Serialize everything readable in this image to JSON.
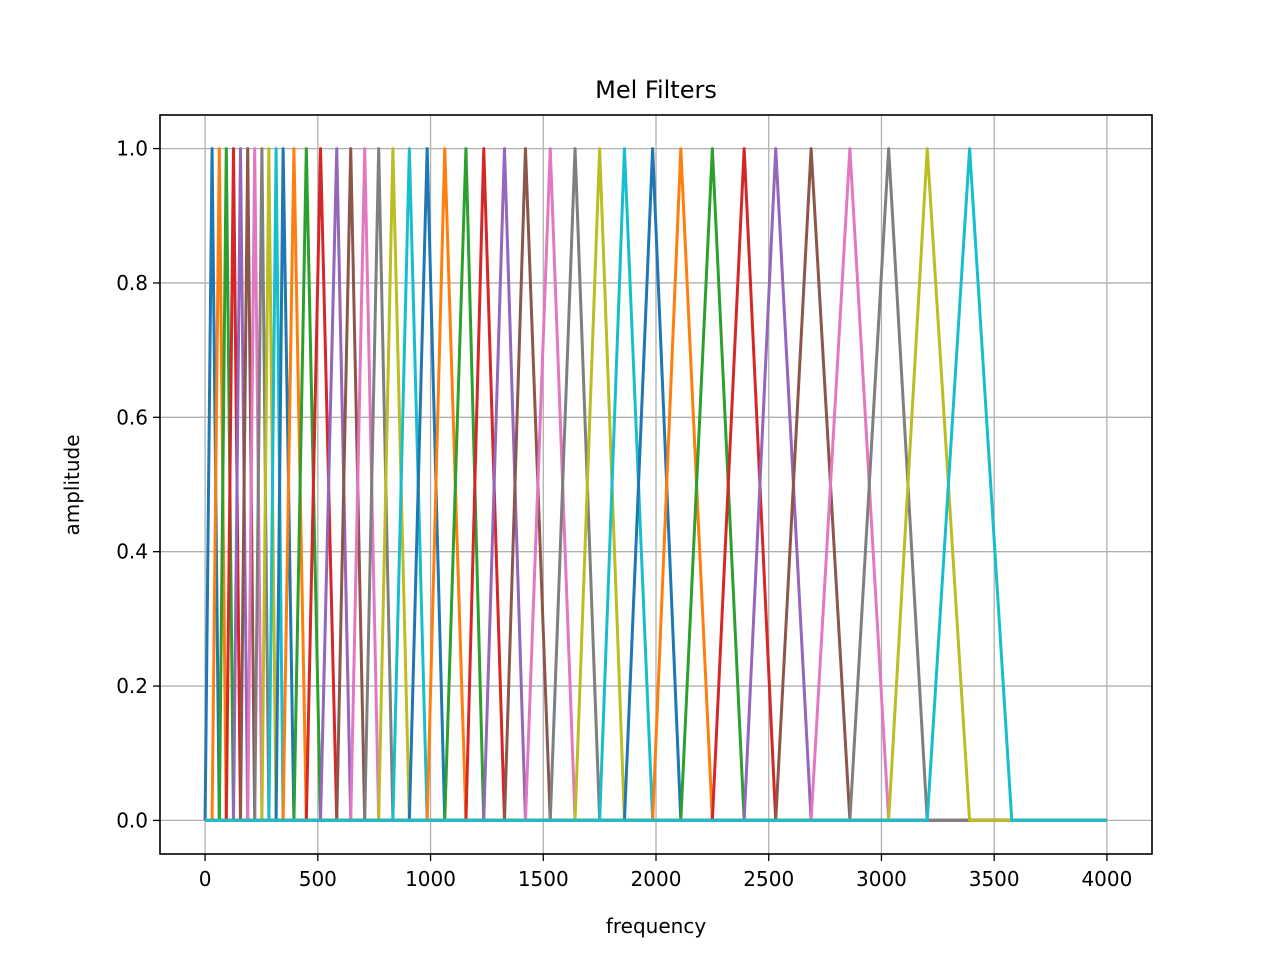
{
  "chart_data": {
    "type": "line",
    "title": "Mel Filters",
    "xlabel": "frequency",
    "ylabel": "amplitude",
    "xlim": [
      -200,
      4200
    ],
    "ylim": [
      -0.05,
      1.05
    ],
    "xticks": [
      0,
      500,
      1000,
      1500,
      2000,
      2500,
      3000,
      3500,
      4000
    ],
    "xtick_labels": [
      "0",
      "500",
      "1000",
      "1500",
      "2000",
      "2500",
      "3000",
      "3500",
      "4000"
    ],
    "yticks": [
      0.0,
      0.2,
      0.4,
      0.6,
      0.8,
      1.0
    ],
    "ytick_labels": [
      "0.0",
      "0.2",
      "0.4",
      "0.6",
      "0.8",
      "1.0"
    ],
    "grid": true,
    "legend": "none",
    "x_range": [
      0,
      4000
    ],
    "filter_count": 40,
    "filter_points_hz": [
      0,
      31,
      63,
      94,
      126,
      157,
      189,
      220,
      252,
      283,
      315,
      346,
      394,
      449,
      512,
      584,
      646,
      708,
      770,
      833,
      906,
      985,
      1063,
      1157,
      1236,
      1328,
      1421,
      1531,
      1641,
      1750,
      1860,
      1985,
      2110,
      2250,
      2391,
      2531,
      2688,
      2860,
      3032,
      3203,
      3391,
      3578,
      3781,
      4000
    ],
    "colors": [
      "#1f77b4",
      "#ff7f0e",
      "#2ca02c",
      "#d62728",
      "#9467bd",
      "#8c564b",
      "#e377c2",
      "#7f7f7f",
      "#bcbd22",
      "#17becf"
    ]
  }
}
